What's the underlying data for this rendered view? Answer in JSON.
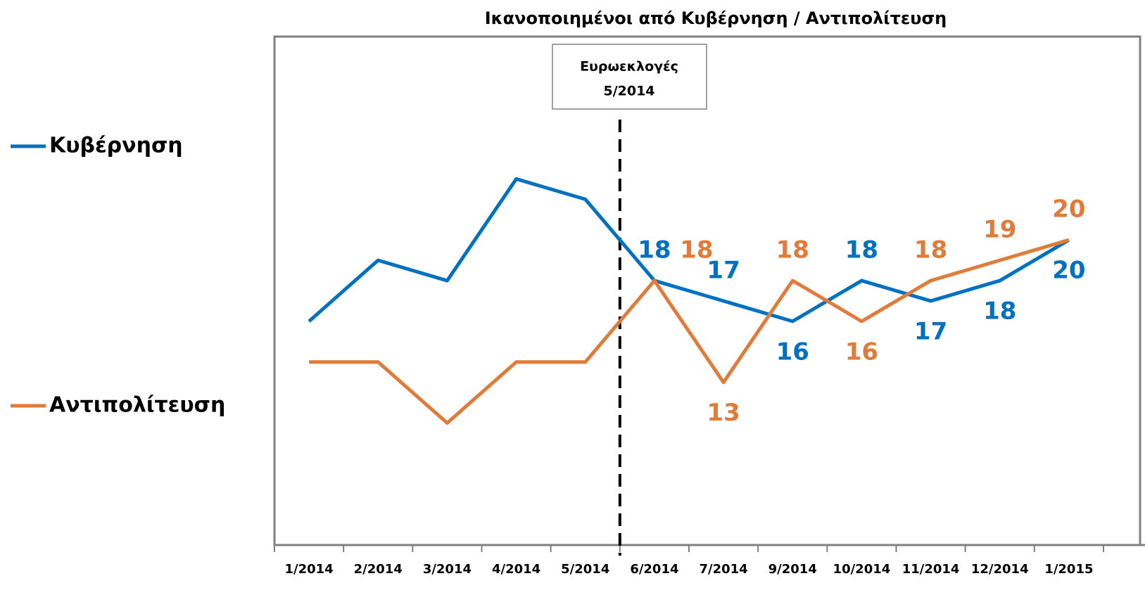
{
  "chart_data": {
    "type": "line",
    "title": "Ικανοποιημένοι από Κυβέρνηση / Αντιπολίτευση",
    "categories": [
      "1/2014",
      "2/2014",
      "3/2014",
      "4/2014",
      "5/2014",
      "6/2014",
      "7/2014",
      "9/2014",
      "10/2014",
      "11/2014",
      "12/2014",
      "1/2015"
    ],
    "series": [
      {
        "name": "Κυβέρνηση",
        "color": "#0070c0",
        "values": [
          16,
          19,
          18,
          23,
          22,
          18,
          17,
          16,
          18,
          17,
          18,
          20
        ]
      },
      {
        "name": "Αντιπολίτευση",
        "color": "#e07b39",
        "values": [
          14,
          14,
          11,
          14,
          14,
          18,
          13,
          18,
          16,
          18,
          19,
          20
        ]
      }
    ],
    "ylim": [
      5,
      30
    ],
    "annotation": {
      "lines": [
        "Ευρωεκλογές",
        "5/2014"
      ],
      "after_category": "5/2014"
    },
    "legend": "left"
  }
}
